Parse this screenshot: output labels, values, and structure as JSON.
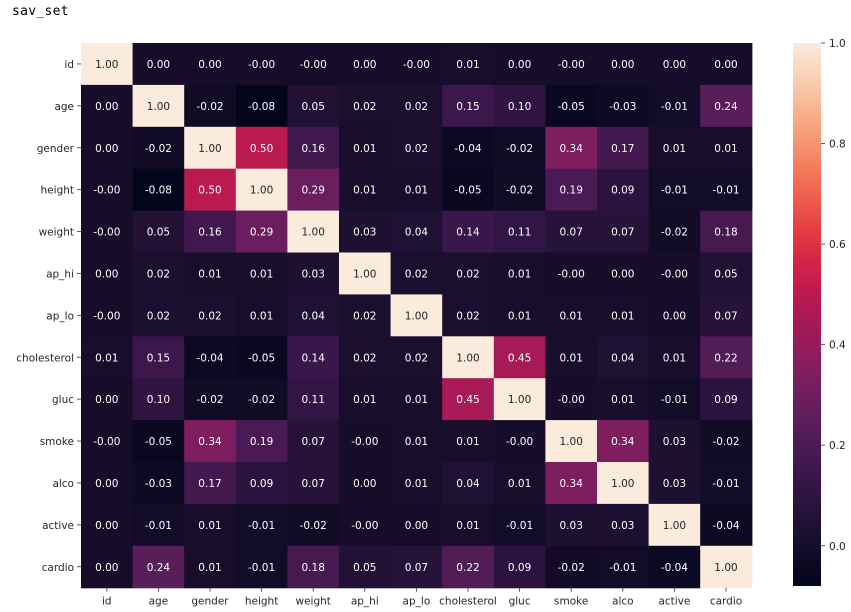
{
  "page": {
    "heading": "sav_set"
  },
  "chart_data": {
    "type": "heatmap",
    "title": "",
    "xlabel": "",
    "ylabel": "",
    "x_labels": [
      "id",
      "age",
      "gender",
      "height",
      "weight",
      "ap_hi",
      "ap_lo",
      "cholesterol",
      "gluc",
      "smoke",
      "alco",
      "active",
      "cardio"
    ],
    "y_labels": [
      "id",
      "age",
      "gender",
      "height",
      "weight",
      "ap_hi",
      "ap_lo",
      "cholesterol",
      "gluc",
      "smoke",
      "alco",
      "active",
      "cardio"
    ],
    "values": [
      [
        1.0,
        0.0,
        0.0,
        -0.0,
        -0.0,
        0.0,
        -0.0,
        0.01,
        0.0,
        -0.0,
        0.0,
        0.0,
        0.0
      ],
      [
        0.0,
        1.0,
        -0.02,
        -0.08,
        0.05,
        0.02,
        0.02,
        0.15,
        0.1,
        -0.05,
        -0.03,
        -0.01,
        0.24
      ],
      [
        0.0,
        -0.02,
        1.0,
        0.5,
        0.16,
        0.01,
        0.02,
        -0.04,
        -0.02,
        0.34,
        0.17,
        0.01,
        0.01
      ],
      [
        -0.0,
        -0.08,
        0.5,
        1.0,
        0.29,
        0.01,
        0.01,
        -0.05,
        -0.02,
        0.19,
        0.09,
        -0.01,
        -0.01
      ],
      [
        -0.0,
        0.05,
        0.16,
        0.29,
        1.0,
        0.03,
        0.04,
        0.14,
        0.11,
        0.07,
        0.07,
        -0.02,
        0.18
      ],
      [
        0.0,
        0.02,
        0.01,
        0.01,
        0.03,
        1.0,
        0.02,
        0.02,
        0.01,
        -0.0,
        0.0,
        -0.0,
        0.05
      ],
      [
        -0.0,
        0.02,
        0.02,
        0.01,
        0.04,
        0.02,
        1.0,
        0.02,
        0.01,
        0.01,
        0.01,
        0.0,
        0.07
      ],
      [
        0.01,
        0.15,
        -0.04,
        -0.05,
        0.14,
        0.02,
        0.02,
        1.0,
        0.45,
        0.01,
        0.04,
        0.01,
        0.22
      ],
      [
        0.0,
        0.1,
        -0.02,
        -0.02,
        0.11,
        0.01,
        0.01,
        0.45,
        1.0,
        -0.0,
        0.01,
        -0.01,
        0.09
      ],
      [
        -0.0,
        -0.05,
        0.34,
        0.19,
        0.07,
        -0.0,
        0.01,
        0.01,
        -0.0,
        1.0,
        0.34,
        0.03,
        -0.02
      ],
      [
        0.0,
        -0.03,
        0.17,
        0.09,
        0.07,
        0.0,
        0.01,
        0.04,
        0.01,
        0.34,
        1.0,
        0.03,
        -0.01
      ],
      [
        0.0,
        -0.01,
        0.01,
        -0.01,
        -0.02,
        -0.0,
        0.0,
        0.01,
        -0.01,
        0.03,
        0.03,
        1.0,
        -0.04
      ],
      [
        0.0,
        0.24,
        0.01,
        -0.01,
        0.18,
        0.05,
        0.07,
        0.22,
        0.09,
        -0.02,
        -0.01,
        -0.04,
        1.0
      ]
    ],
    "value_range": [
      -0.08,
      1.0
    ],
    "annotate_format": "2 decimals",
    "colormap": "rocket",
    "colorbar": {
      "ticks": [
        0.0,
        0.2,
        0.4,
        0.6,
        0.8,
        1.0
      ],
      "tick_labels": [
        "0.0",
        "0.2",
        "0.4",
        "0.6",
        "0.8",
        "1.0"
      ],
      "placement": "right"
    },
    "grid": false
  }
}
